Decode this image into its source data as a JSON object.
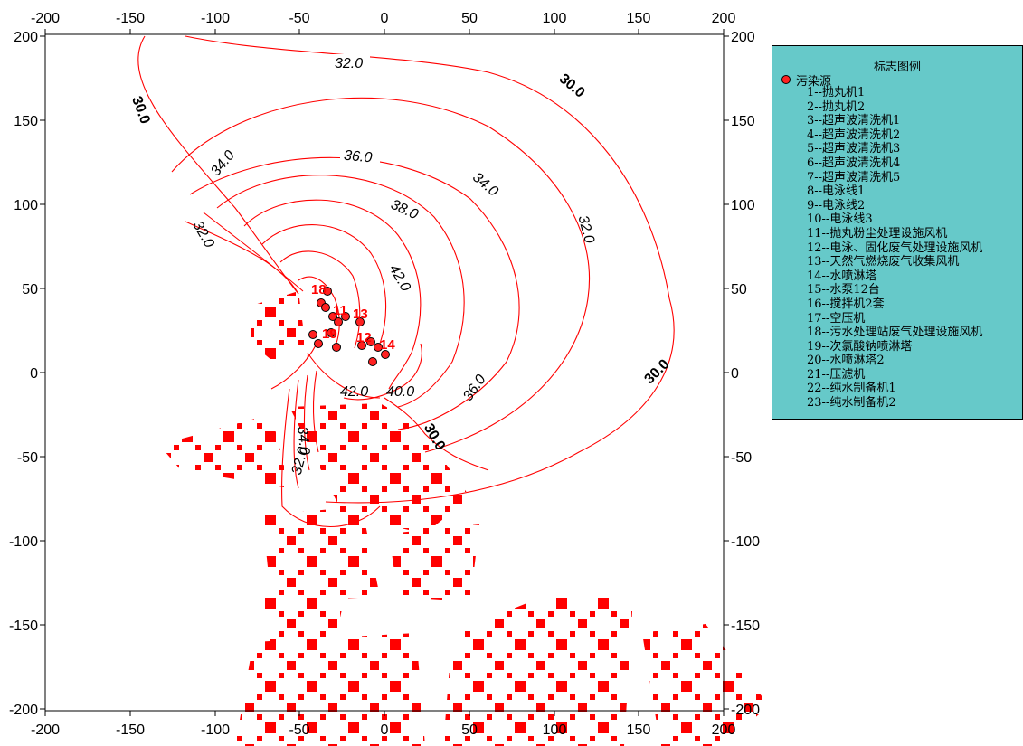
{
  "map": {
    "x_ticks": [
      "-200",
      "-150",
      "-100",
      "-50",
      "0",
      "50",
      "100",
      "150",
      "200"
    ],
    "y_ticks": [
      "200",
      "150",
      "100",
      "50",
      "0",
      "-50",
      "-100",
      "-150",
      "-200"
    ],
    "x_range": [
      -200,
      200
    ],
    "y_range": [
      -200,
      200
    ],
    "contour_color": "#ff0000",
    "contour_levels": [
      30.0,
      32.0,
      34.0,
      36.0,
      38.0,
      40.0,
      42.0
    ],
    "contour_labels": [
      "32.0",
      "30.0",
      "30.0",
      "34.0",
      "36.0",
      "32.0",
      "34.0",
      "38.0",
      "32.0",
      "42.0",
      "36.0",
      "30.0",
      "40.0",
      "42.0",
      "34.0",
      "32.0",
      "30.0"
    ],
    "source_labels": [
      "18",
      "13",
      "11",
      "14",
      "12",
      "19"
    ]
  },
  "legend": {
    "title": "标志图例",
    "symbol_label": "污染源",
    "symbol_color": "#ff2020",
    "background": "#66c9c9",
    "items": [
      "1--抛丸机1",
      "2--抛丸机2",
      "3--超声波清洗机1",
      "4--超声波清洗机2",
      "5--超声波清洗机3",
      "6--超声波清洗机4",
      "7--超声波清洗机5",
      "8--电泳线1",
      "9--电泳线2",
      "10--电泳线3",
      "11--抛丸粉尘处理设施风机",
      "12--电泳、固化废气处理设施风机",
      "13--天然气燃烧废气收集风机",
      "14--水喷淋塔",
      "15--水泵12台",
      "16--搅拌机2套",
      "17--空压机",
      "18--污水处理站废气处理设施风机",
      "19--次氯酸钠喷淋塔",
      "20--水喷淋塔2",
      "21--压滤机",
      "22--纯水制备机1",
      "23--纯水制备机2"
    ]
  }
}
